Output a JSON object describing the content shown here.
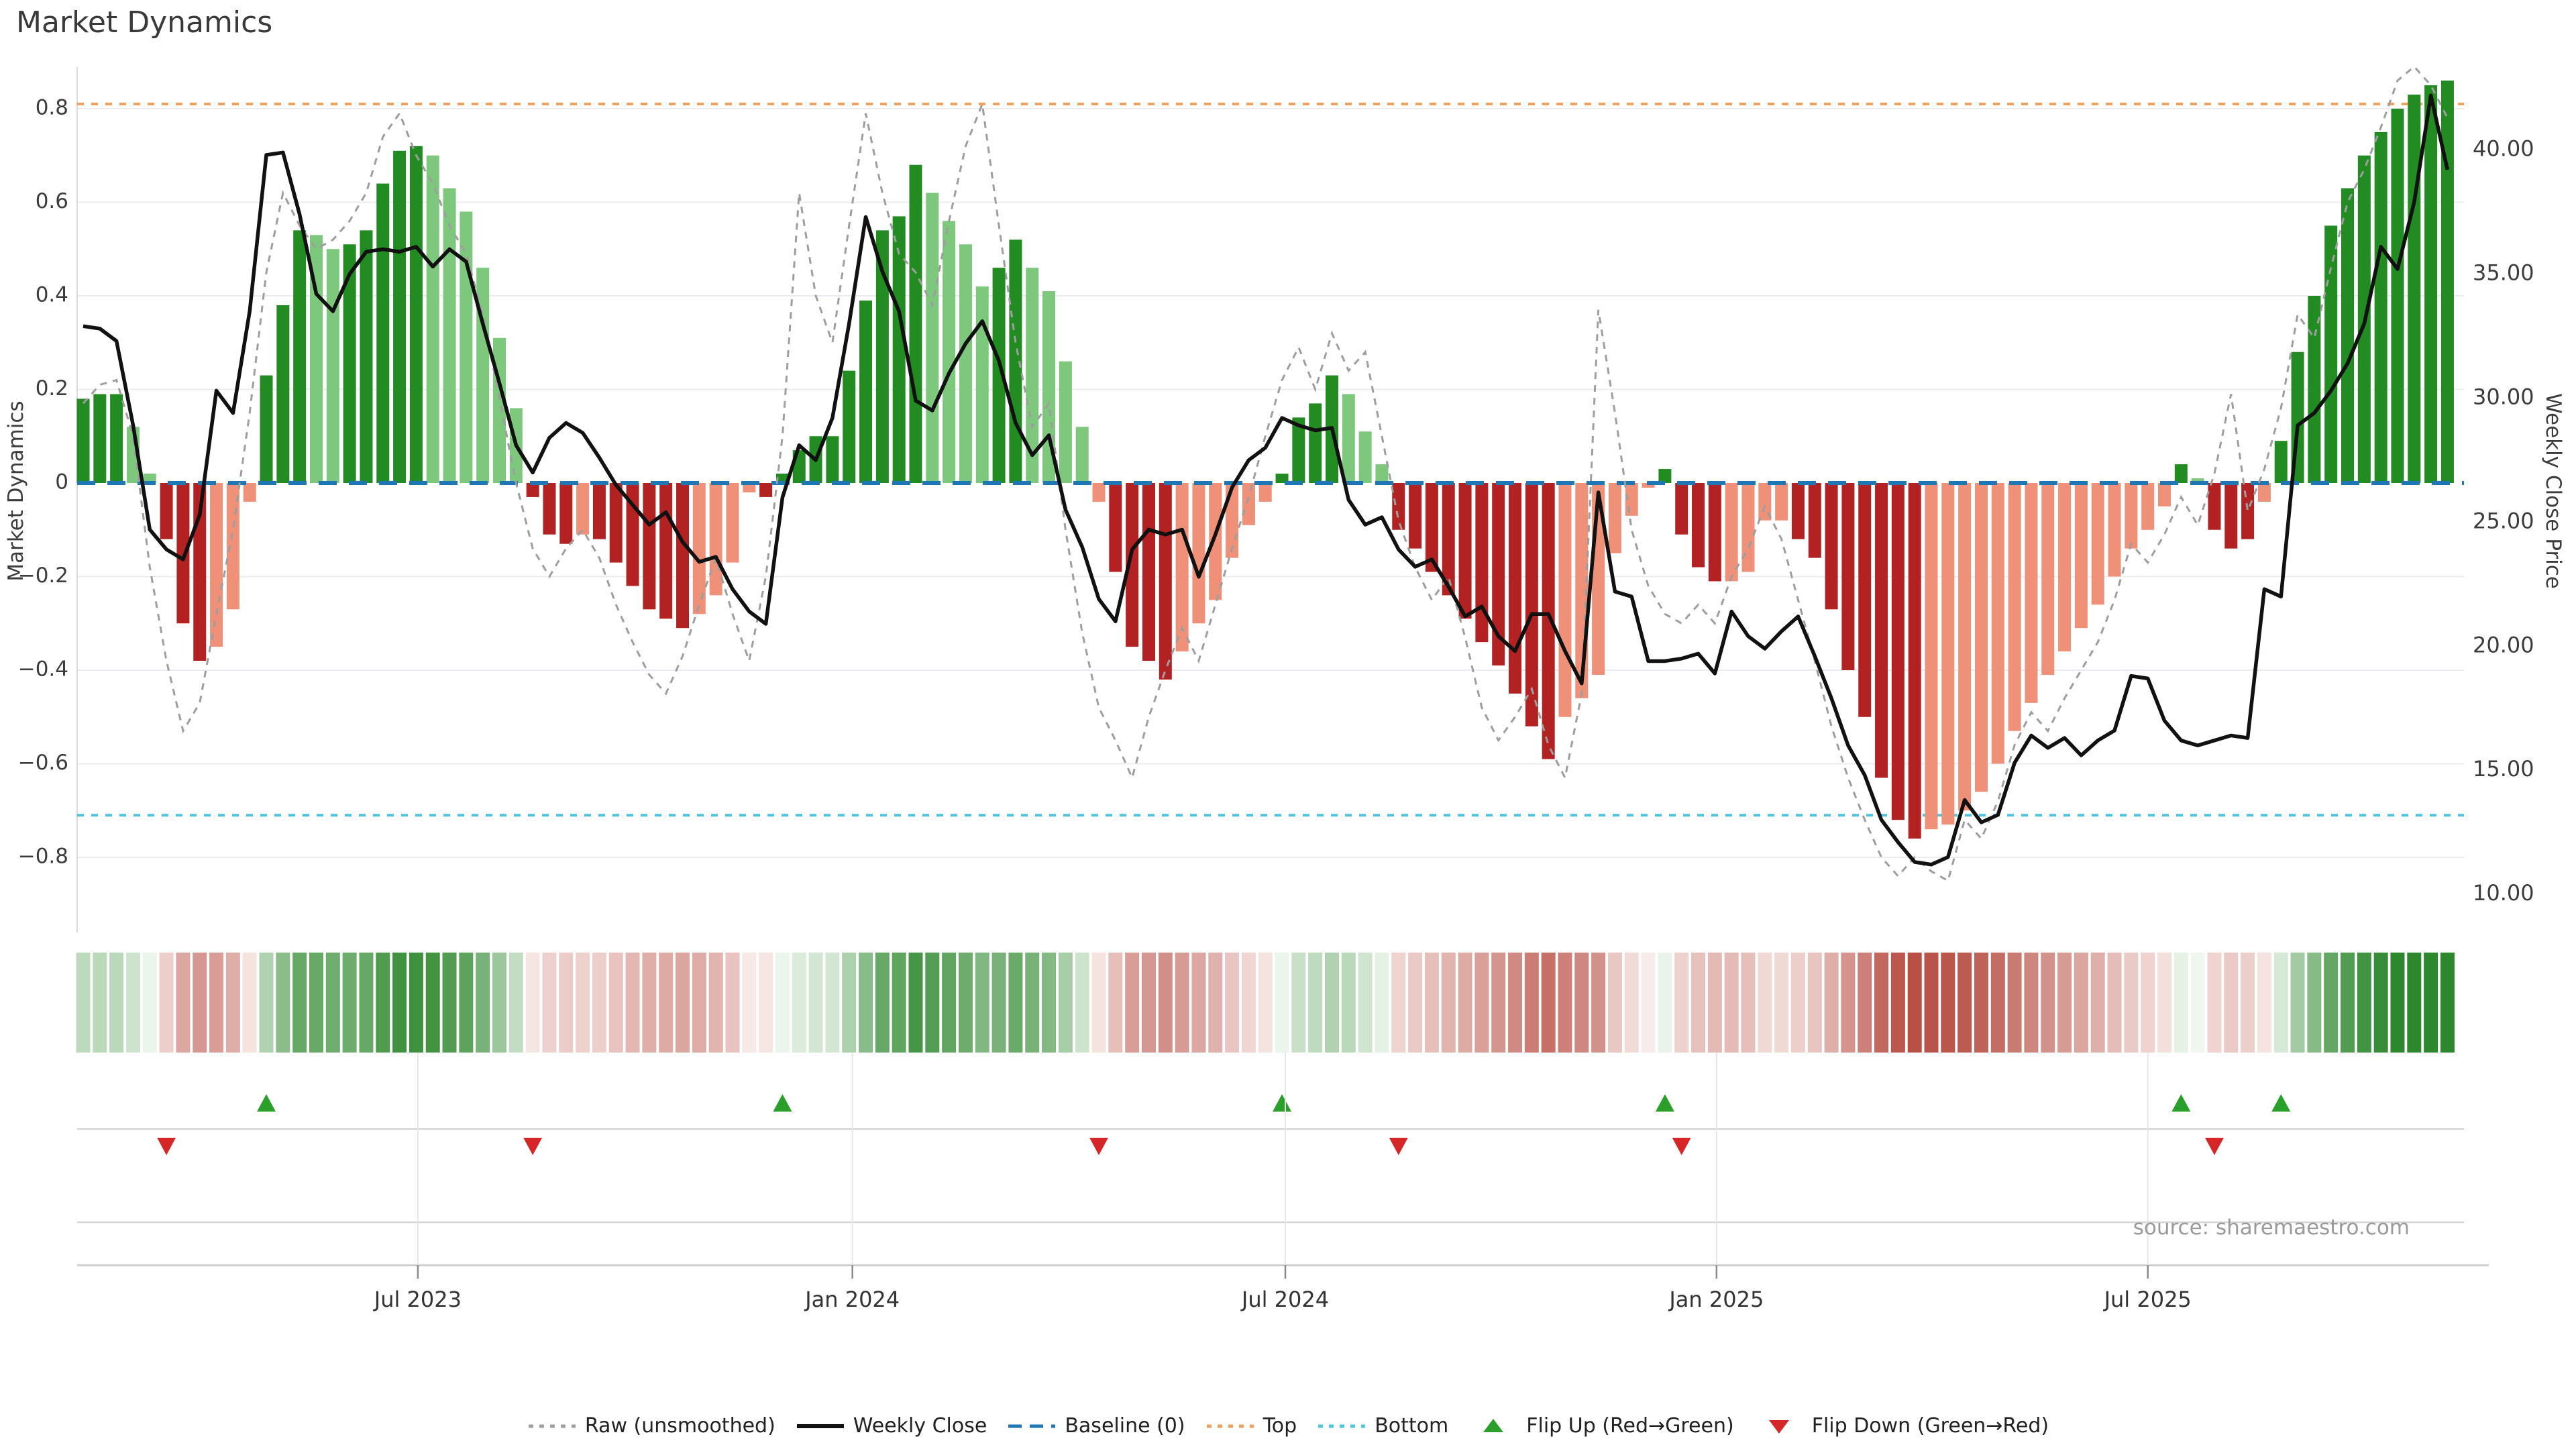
{
  "title": "Market Dynamics",
  "source_note": "source: sharemaestro.com",
  "left_axis": {
    "title": "Market Dynamics",
    "tick_values": [
      0.8,
      0.6,
      0.4,
      0.2,
      0,
      -0.2,
      -0.4,
      -0.6,
      -0.8
    ],
    "tick_labels": [
      "0.8",
      "0.6",
      "0.4",
      "0.2",
      "0",
      "−0.2",
      "−0.4",
      "−0.6",
      "−0.8"
    ]
  },
  "right_axis": {
    "title": "Weekly Close Price",
    "tick_values": [
      40,
      35,
      30,
      25,
      20,
      15,
      10
    ],
    "tick_labels": [
      "40.00",
      "35.00",
      "30.00",
      "25.00",
      "20.00",
      "15.00",
      "10.00"
    ]
  },
  "x_axis": {
    "tick_labels": [
      "Jul 2023",
      "Jan 2024",
      "Jul 2024",
      "Jan 2025",
      "Jul 2025"
    ],
    "tick_weeks": [
      21.1,
      47.2,
      73.2,
      99.1,
      125.0
    ]
  },
  "reference_lines": {
    "baseline": {
      "label": "Baseline (0)",
      "value": 0,
      "color": "#1f77b4",
      "style": "dashed"
    },
    "top": {
      "label": "Top",
      "value": 0.81,
      "color": "#f0a05a",
      "style": "dotted"
    },
    "bottom": {
      "label": "Bottom",
      "value": -0.71,
      "color": "#4fc3dc",
      "style": "dotted"
    }
  },
  "legend": [
    {
      "label": "Raw (unsmoothed)",
      "type": "dotted-line",
      "color": "#9e9e9e"
    },
    {
      "label": "Weekly Close",
      "type": "solid-line",
      "color": "#111111"
    },
    {
      "label": "Baseline (0)",
      "type": "dashed-line",
      "color": "#1f77b4"
    },
    {
      "label": "Top",
      "type": "dotted-line",
      "color": "#f0a05a"
    },
    {
      "label": "Bottom",
      "type": "dotted-line",
      "color": "#4fc3dc"
    },
    {
      "label": "Flip Up (Red→Green)",
      "type": "triangle-up",
      "color": "#2aa02a"
    },
    {
      "label": "Flip Down (Green→Red)",
      "type": "triangle-down",
      "color": "#d62728"
    }
  ],
  "chart_data": {
    "type": "combo-bar-line-heatmap",
    "freq": "weekly",
    "start_date": "2023-02-10",
    "n_weeks": 143,
    "ylim_left": [
      -0.96,
      0.9
    ],
    "ylim_right_price": [
      10,
      43
    ],
    "oscillator": [
      0.18,
      0.19,
      0.19,
      0.12,
      0.02,
      -0.12,
      -0.3,
      -0.38,
      -0.35,
      -0.27,
      -0.04,
      0.23,
      0.38,
      0.54,
      0.53,
      0.5,
      0.51,
      0.54,
      0.64,
      0.71,
      0.72,
      0.7,
      0.63,
      0.58,
      0.46,
      0.31,
      0.16,
      -0.03,
      -0.11,
      -0.13,
      -0.11,
      -0.12,
      -0.17,
      -0.22,
      -0.27,
      -0.29,
      -0.31,
      -0.28,
      -0.24,
      -0.17,
      -0.02,
      -0.03,
      0.02,
      0.07,
      0.1,
      0.1,
      0.24,
      0.39,
      0.54,
      0.57,
      0.68,
      0.62,
      0.56,
      0.51,
      0.42,
      0.46,
      0.52,
      0.46,
      0.41,
      0.26,
      0.12,
      -0.04,
      -0.19,
      -0.35,
      -0.38,
      -0.42,
      -0.36,
      -0.3,
      -0.25,
      -0.16,
      -0.09,
      -0.04,
      0.02,
      0.14,
      0.17,
      0.23,
      0.19,
      0.11,
      0.04,
      -0.1,
      -0.14,
      -0.19,
      -0.24,
      -0.29,
      -0.34,
      -0.39,
      -0.45,
      -0.52,
      -0.59,
      -0.5,
      -0.46,
      -0.41,
      -0.15,
      -0.07,
      -0.01,
      0.03,
      -0.11,
      -0.18,
      -0.21,
      -0.21,
      -0.19,
      -0.08,
      -0.08,
      -0.12,
      -0.16,
      -0.27,
      -0.4,
      -0.5,
      -0.63,
      -0.72,
      -0.76,
      -0.74,
      -0.73,
      -0.7,
      -0.66,
      -0.6,
      -0.53,
      -0.47,
      -0.41,
      -0.36,
      -0.31,
      -0.26,
      -0.2,
      -0.14,
      -0.1,
      -0.05,
      0.04,
      0.01,
      -0.1,
      -0.14,
      -0.12,
      -0.04,
      0.09,
      0.28,
      0.4,
      0.55,
      0.63,
      0.7,
      0.75,
      0.8,
      0.83,
      0.85,
      0.86
    ],
    "oscillator_shade": "DDDLLDDDLLLDDDLLDDDDDLLLLLLDDDLDDDDDDLLLLDDDDDDDDDDLLLLDDLLLLLDDDDLLLLLLDDDDLLLDDDDDDDDDDLLLLLLDDDDLLLLDDDDDDDDLLLLLLLLLLLLLLLDLDDDLDDDDDDDDDDD",
    "weekly_close": [
      32.9,
      32.8,
      32.3,
      28.9,
      24.7,
      23.9,
      23.5,
      25.3,
      30.3,
      29.4,
      33.5,
      39.8,
      39.9,
      37.4,
      34.2,
      33.5,
      35.0,
      35.9,
      36.0,
      35.9,
      36.1,
      35.3,
      36.0,
      35.5,
      33.0,
      30.6,
      28.1,
      27.0,
      28.4,
      29.0,
      28.6,
      27.6,
      26.5,
      25.7,
      24.9,
      25.4,
      24.2,
      23.4,
      23.6,
      22.3,
      21.4,
      20.9,
      26.0,
      28.1,
      27.5,
      29.2,
      33.0,
      37.3,
      35.1,
      33.5,
      29.9,
      29.5,
      31.0,
      32.2,
      33.1,
      31.5,
      29.0,
      27.7,
      28.5,
      25.5,
      24.0,
      21.9,
      21.0,
      23.9,
      24.7,
      24.5,
      24.7,
      22.8,
      24.5,
      26.4,
      27.5,
      28.0,
      29.2,
      28.9,
      28.7,
      28.8,
      25.9,
      24.9,
      25.2,
      23.9,
      23.2,
      23.5,
      22.4,
      21.2,
      21.6,
      20.4,
      19.8,
      21.3,
      21.3,
      19.8,
      18.5,
      26.2,
      22.2,
      22.0,
      19.4,
      19.4,
      19.5,
      19.7,
      18.9,
      21.4,
      20.4,
      19.9,
      20.6,
      21.2,
      19.6,
      17.9,
      16.0,
      14.8,
      13.0,
      12.1,
      11.3,
      11.2,
      11.5,
      13.8,
      12.9,
      13.2,
      15.3,
      16.4,
      15.9,
      16.3,
      15.6,
      16.2,
      16.6,
      18.8,
      18.7,
      17.0,
      16.2,
      16.0,
      16.2,
      16.4,
      16.3,
      22.3,
      22.0,
      28.9,
      29.4,
      30.3,
      31.4,
      33.0,
      36.1,
      35.2,
      37.9,
      42.2,
      39.2
    ],
    "raw_unsmoothed": [
      0.17,
      0.21,
      0.22,
      0.1,
      -0.18,
      -0.38,
      -0.53,
      -0.47,
      -0.28,
      -0.1,
      0.15,
      0.45,
      0.62,
      0.55,
      0.5,
      0.52,
      0.56,
      0.62,
      0.74,
      0.79,
      0.7,
      0.64,
      0.55,
      0.49,
      0.36,
      0.18,
      0.0,
      -0.14,
      -0.2,
      -0.14,
      -0.1,
      -0.16,
      -0.26,
      -0.34,
      -0.41,
      -0.45,
      -0.37,
      -0.26,
      -0.16,
      -0.28,
      -0.38,
      -0.2,
      0.1,
      0.62,
      0.4,
      0.3,
      0.55,
      0.79,
      0.62,
      0.49,
      0.45,
      0.38,
      0.56,
      0.72,
      0.81,
      0.55,
      0.3,
      0.12,
      0.17,
      -0.1,
      -0.32,
      -0.48,
      -0.55,
      -0.63,
      -0.5,
      -0.4,
      -0.31,
      -0.38,
      -0.26,
      -0.14,
      -0.03,
      0.1,
      0.22,
      0.29,
      0.2,
      0.32,
      0.24,
      0.28,
      0.1,
      -0.08,
      -0.18,
      -0.25,
      -0.2,
      -0.33,
      -0.48,
      -0.55,
      -0.5,
      -0.44,
      -0.56,
      -0.63,
      -0.45,
      0.37,
      0.15,
      -0.1,
      -0.22,
      -0.28,
      -0.3,
      -0.26,
      -0.3,
      -0.2,
      -0.14,
      -0.05,
      -0.12,
      -0.25,
      -0.38,
      -0.52,
      -0.63,
      -0.72,
      -0.8,
      -0.84,
      -0.8,
      -0.83,
      -0.85,
      -0.72,
      -0.76,
      -0.68,
      -0.56,
      -0.49,
      -0.53,
      -0.46,
      -0.4,
      -0.34,
      -0.25,
      -0.13,
      -0.17,
      -0.11,
      -0.03,
      -0.09,
      0.02,
      0.19,
      -0.06,
      0.03,
      0.16,
      0.36,
      0.31,
      0.46,
      0.6,
      0.67,
      0.76,
      0.86,
      0.89,
      0.85,
      0.78
    ],
    "flip_up_weeks": [
      12,
      43,
      73,
      96,
      127,
      133
    ],
    "flip_down_weeks": [
      6,
      28,
      62,
      80,
      97,
      129
    ],
    "colors": {
      "bar_pos_dark": "#228b22",
      "bar_pos_light": "#7dc87d",
      "bar_neg_dark": "#b22222",
      "bar_neg_light": "#ef9178",
      "weekly_close": "#111111",
      "raw": "#9e9e9e",
      "baseline": "#1f77b4",
      "top": "#f0a05a",
      "bottom": "#4fc3dc",
      "flip_up": "#2aa02a",
      "flip_down": "#d62728",
      "gridline": "#ececf0"
    }
  }
}
